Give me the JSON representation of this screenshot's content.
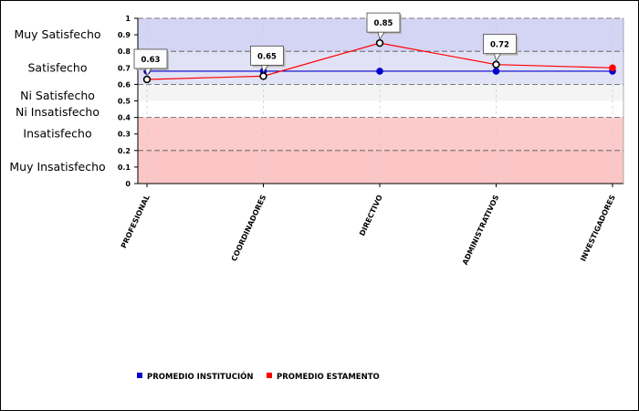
{
  "chart_data": {
    "type": "line",
    "title": "",
    "xlabel": "",
    "ylabel": "",
    "ylim": [
      0,
      1
    ],
    "yticks": [
      "0",
      "0.1",
      "0.2",
      "0.3",
      "0.4",
      "0.5",
      "0.6",
      "0.7",
      "0.8",
      "0.9",
      "1"
    ],
    "categories": [
      "PROFESIONAL",
      "COORDINADORES",
      "DIRECTIVO",
      "ADMINISTRATIVOS",
      "INVESTIGADORES"
    ],
    "bands": [
      {
        "label": "Muy Satisfecho",
        "from": 0.8,
        "to": 1.0,
        "color": "#d4d4f4"
      },
      {
        "label": "Satisfecho",
        "from": 0.6,
        "to": 0.8,
        "color": "#e2e2f6"
      },
      {
        "label": "Ni Satisfecho",
        "from": 0.5,
        "to": 0.6,
        "color": "#f4f4f4"
      },
      {
        "label": "Ni Insatisfecho",
        "from": 0.4,
        "to": 0.5,
        "color": "#ffffff"
      },
      {
        "label": "Insatisfecho",
        "from": 0.2,
        "to": 0.4,
        "color": "#fccaca"
      },
      {
        "label": "Muy Insatisfecho",
        "from": 0.0,
        "to": 0.2,
        "color": "#fcc6c6"
      }
    ],
    "series": [
      {
        "name": "PROMEDIO INSTITUCIÓN",
        "color": "#0000cc",
        "values": [
          0.68,
          0.68,
          0.68,
          0.68,
          0.68
        ]
      },
      {
        "name": "PROMEDIO ESTAMENTO",
        "color": "#ff0000",
        "values": [
          0.63,
          0.65,
          0.85,
          0.72,
          0.7
        ]
      }
    ],
    "annotations": [
      {
        "category": "PROFESIONAL",
        "value": 0.63,
        "text": "0.63"
      },
      {
        "category": "COORDINADORES",
        "value": 0.65,
        "text": "0.65"
      },
      {
        "category": "DIRECTIVO",
        "value": 0.85,
        "text": "0.85"
      },
      {
        "category": "ADMINISTRATIVOS",
        "value": 0.72,
        "text": "0.72"
      }
    ],
    "legend": "bottom-left"
  }
}
